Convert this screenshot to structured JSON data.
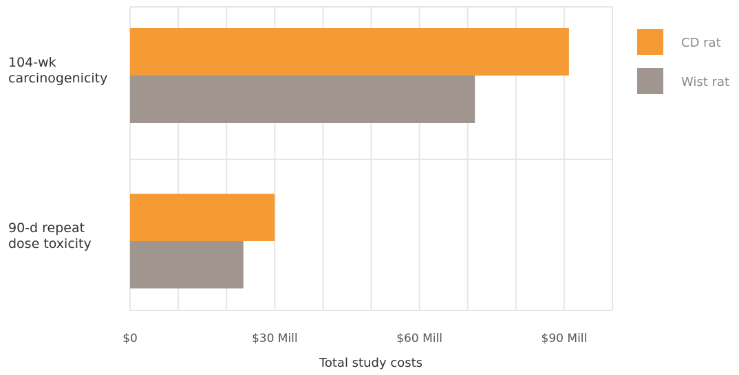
{
  "chart_data": {
    "type": "bar",
    "orientation": "horizontal",
    "categories": [
      "104-wk carcinogenicity",
      "90-d repeat dose toxicity"
    ],
    "category_lines": [
      [
        "104-wk",
        "carcinogenicity"
      ],
      [
        "90-d repeat",
        "dose toxicity"
      ]
    ],
    "series": [
      {
        "name": "CD rat",
        "values": [
          91,
          30
        ],
        "color": "#f49b35"
      },
      {
        "name": "Wist rat",
        "values": [
          71.5,
          23.5
        ],
        "color": "#a0968f"
      }
    ],
    "xlabel": "Total study costs",
    "ylabel": "",
    "title": "",
    "xlim": [
      0,
      100
    ],
    "x_ticks": [
      {
        "value": 0,
        "label": "$0"
      },
      {
        "value": 30,
        "label": "$30 Mill"
      },
      {
        "value": 60,
        "label": "$60 Mill"
      },
      {
        "value": 90,
        "label": "$90 Mill"
      }
    ],
    "x_gridline_step": 10,
    "grid": true,
    "legend_position": "right",
    "grid_color": "#e6e6e6"
  }
}
